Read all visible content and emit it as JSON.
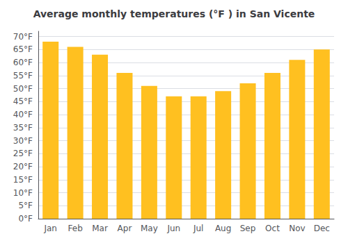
{
  "chart_data": {
    "type": "bar",
    "title": "Average monthly temperatures (°F ) in San Vicente",
    "categories": [
      "Jan",
      "Feb",
      "Mar",
      "Apr",
      "May",
      "Jun",
      "Jul",
      "Aug",
      "Sep",
      "Oct",
      "Nov",
      "Dec"
    ],
    "values": [
      68,
      66,
      63,
      56,
      51,
      47,
      47,
      49,
      52,
      56,
      61,
      65
    ],
    "color": "#FFC020",
    "ylim": [
      0,
      72
    ],
    "yticks": [
      {
        "value": 0,
        "label": "0°F"
      },
      {
        "value": 5,
        "label": "5°F"
      },
      {
        "value": 10,
        "label": "10°F"
      },
      {
        "value": 15,
        "label": "15°F"
      },
      {
        "value": 20,
        "label": "20°F"
      },
      {
        "value": 25,
        "label": "25°F"
      },
      {
        "value": 30,
        "label": "30°F"
      },
      {
        "value": 35,
        "label": "35°F"
      },
      {
        "value": 40,
        "label": "40°F"
      },
      {
        "value": 45,
        "label": "45°F"
      },
      {
        "value": 50,
        "label": "50°F"
      },
      {
        "value": 55,
        "label": "55°F"
      },
      {
        "value": 60,
        "label": "60°F"
      },
      {
        "value": 65,
        "label": "65°F"
      },
      {
        "value": 70,
        "label": "70°F"
      }
    ],
    "grid": true
  }
}
